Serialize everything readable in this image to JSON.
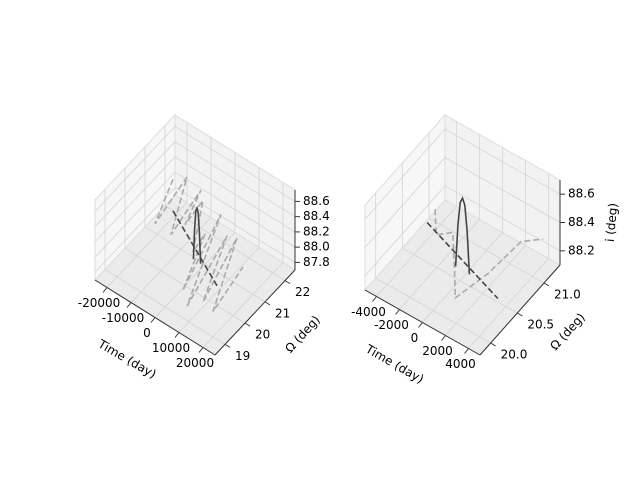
{
  "chart_data": [
    {
      "type": "line3d",
      "xlabel": "Time (day)",
      "ylabel": "Ω (deg)",
      "xlim": [
        -25000,
        25000
      ],
      "ylim": [
        18.5,
        22.5
      ],
      "zlim": [
        87.7,
        88.75
      ],
      "xticks": [
        -20000,
        -10000,
        0,
        10000,
        20000
      ],
      "yticks": [
        19,
        20,
        21,
        22
      ],
      "zticks": [
        87.8,
        {
          "value": 88,
          "label": "88.0"
        },
        88.2,
        88.4,
        88.6
      ],
      "series": [
        {
          "color": "#aaaaaa",
          "dash": true,
          "x": [
            -20000,
            -17500,
            -15000,
            -12500,
            -10000,
            -7500,
            -5000,
            -2500,
            0,
            2500,
            5000,
            7500,
            10000,
            12500,
            15000,
            17500,
            20000
          ],
          "y": [
            21.8,
            20.6,
            21.9,
            20.8,
            22.0,
            20.9,
            21.5,
            20.7,
            21.0,
            19.6,
            21.2,
            19.2,
            20.9,
            19.4,
            20.8,
            19.3,
            20.5
          ],
          "z": [
            88.2,
            88.0,
            88.3,
            87.9,
            88.2,
            88.1,
            88.3,
            87.9,
            88.1,
            87.8,
            88.4,
            87.8,
            88.3,
            87.9,
            88.4,
            87.9,
            88.2
          ]
        },
        {
          "color": "#444444",
          "dash": true,
          "x": [
            -15000,
            15000
          ],
          "y": [
            21.2,
            19.8
          ],
          "z": [
            88.05,
            88.05
          ]
        },
        {
          "color": "#444444",
          "dash": false,
          "x": [
            -1500,
            -1000,
            -500,
            0,
            500,
            1000,
            1500
          ],
          "y": [
            20.6,
            20.6,
            20.6,
            20.6,
            20.6,
            20.6,
            20.6
          ],
          "z": [
            87.85,
            88.25,
            88.5,
            88.55,
            88.5,
            88.25,
            87.85
          ]
        }
      ]
    },
    {
      "type": "line3d",
      "xlabel": "Time (day)",
      "ylabel": "Ω (deg)",
      "zlabel": "i (deg)",
      "xlim": [
        -5000,
        5000
      ],
      "ylim": [
        19.8,
        21.3
      ],
      "zlim": [
        88.1,
        88.7
      ],
      "xticks": [
        -4000,
        -2000,
        0,
        2000,
        4000
      ],
      "yticks": [
        {
          "value": 20,
          "label": "20.0"
        },
        20.5,
        {
          "value": 21,
          "label": "21.0"
        }
      ],
      "zticks": [
        88.2,
        88.4,
        88.6
      ],
      "series": [
        {
          "color": "#aaaaaa",
          "dash": true,
          "x": [
            -4000,
            -3000,
            -2000,
            -1000,
            0,
            1000,
            2000,
            3000,
            4000
          ],
          "y": [
            20.9,
            20.7,
            20.8,
            20.6,
            20.4,
            20.2,
            20.6,
            21.0,
            21.2
          ],
          "z": [
            88.25,
            88.2,
            88.22,
            88.2,
            88.22,
            88.15,
            88.2,
            88.3,
            88.28
          ]
        },
        {
          "color": "#444444",
          "dash": true,
          "x": [
            -4000,
            4000
          ],
          "y": [
            20.75,
            20.35
          ],
          "z": [
            88.22,
            88.22
          ]
        },
        {
          "color": "#444444",
          "dash": false,
          "x": [
            -600,
            -400,
            -200,
            0,
            200,
            400,
            600
          ],
          "y": [
            20.55,
            20.55,
            20.55,
            20.55,
            20.55,
            20.55,
            20.55
          ],
          "z": [
            88.15,
            88.45,
            88.62,
            88.66,
            88.62,
            88.45,
            88.15
          ]
        }
      ]
    }
  ]
}
